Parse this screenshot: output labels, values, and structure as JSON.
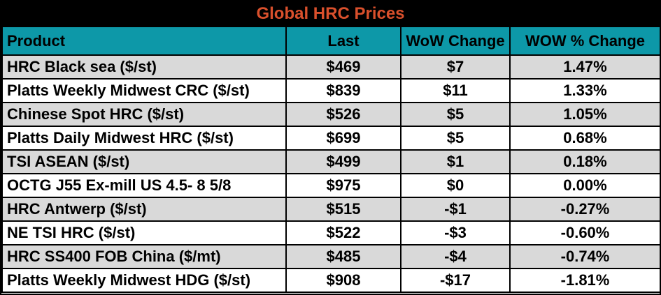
{
  "colors": {
    "header_bg": "#0D98A8",
    "title_bg": "#000000",
    "title_color": "#D9502C",
    "alt_row_bg": "#D9D9D9",
    "row_bg": "#FFFFFF",
    "border": "#000000",
    "text": "#000000"
  },
  "chart_data": {
    "type": "table",
    "title": "Global HRC Prices",
    "columns": [
      "Product",
      "Last",
      "WoW Change",
      "WOW % Change"
    ],
    "rows": [
      [
        "HRC Black sea ($/st)",
        "$469",
        "$7",
        "1.47%"
      ],
      [
        "Platts Weekly Midwest CRC ($/st)",
        "$839",
        "$11",
        "1.33%"
      ],
      [
        "Chinese Spot HRC ($/st)",
        "$526",
        "$5",
        "1.05%"
      ],
      [
        "Platts Daily Midwest HRC ($/st)",
        "$699",
        "$5",
        "0.68%"
      ],
      [
        "TSI ASEAN ($/st)",
        "$499",
        "$1",
        "0.18%"
      ],
      [
        "OCTG J55 Ex-mill US 4.5- 8 5/8",
        "$975",
        "$0",
        "0.00%"
      ],
      [
        "HRC Antwerp ($/st)",
        "$515",
        "-$1",
        "-0.27%"
      ],
      [
        "NE TSI HRC ($/st)",
        "$522",
        "-$3",
        "-0.60%"
      ],
      [
        "HRC SS400 FOB China ($/mt)",
        "$485",
        "-$4",
        "-0.74%"
      ],
      [
        "Platts Weekly Midwest HDG ($/st)",
        "$908",
        "-$17",
        "-1.81%"
      ]
    ]
  }
}
